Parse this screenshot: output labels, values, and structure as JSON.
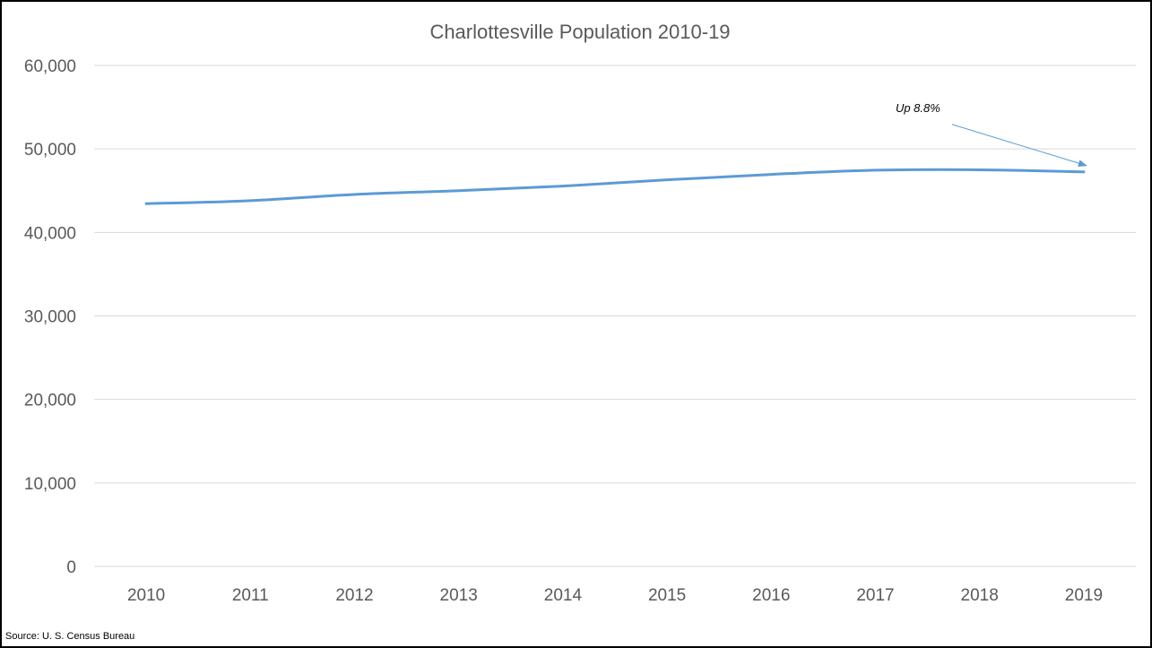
{
  "chart_data": {
    "type": "line",
    "title": "Charlottesville Population 2010-19",
    "categories": [
      "2010",
      "2011",
      "2012",
      "2013",
      "2014",
      "2015",
      "2016",
      "2017",
      "2018",
      "2019"
    ],
    "series": [
      {
        "values": [
          43450,
          43800,
          44550,
          45000,
          45550,
          46300,
          46950,
          47450,
          47500,
          47250
        ],
        "color": "#5b9bd5"
      }
    ],
    "y_ticks": [
      "0",
      "10,000",
      "20,000",
      "30,000",
      "40,000",
      "50,000",
      "60,000"
    ],
    "ylim": [
      0,
      60000
    ],
    "xlabel": "",
    "ylabel": "",
    "grid": true,
    "legend": "none",
    "annotation": {
      "text": "Up 8.8%",
      "target_category": "2019",
      "arrow_color": "#5b9bd5"
    },
    "source": "Source: U. S. Census Bureau",
    "colors": {
      "gridline": "#d9d9d9",
      "text": "#595959",
      "border": "#000000"
    }
  }
}
